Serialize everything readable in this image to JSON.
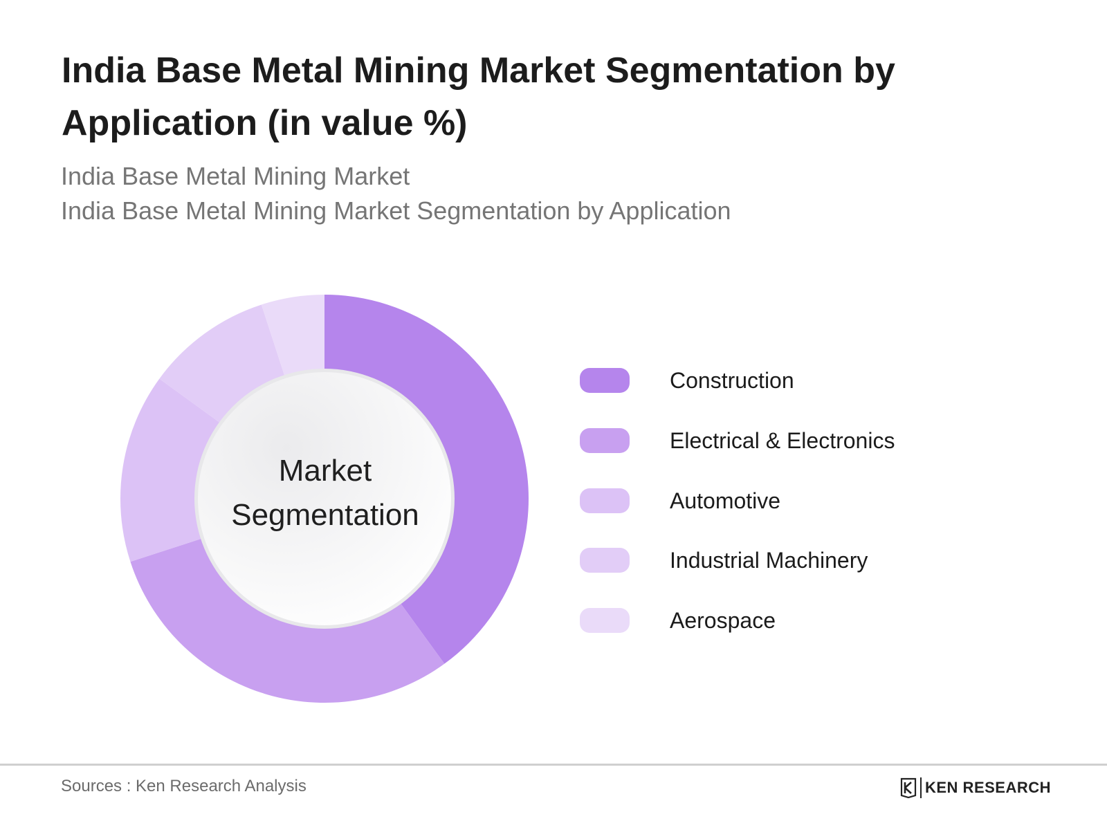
{
  "header": {
    "title": "India Base Metal Mining Market Segmentation by Application (in value %)",
    "subtitle_line1": "India Base Metal Mining Market",
    "subtitle_line2": "India Base Metal Mining Market Segmentation by Application"
  },
  "chart_data": {
    "type": "pie",
    "donut": true,
    "center_label_line1": "Market",
    "center_label_line2": "Segmentation",
    "categories": [
      "Construction",
      "Electrical & Electronics",
      "Automotive",
      "Industrial Machinery",
      "Aerospace"
    ],
    "values": [
      40,
      30,
      15,
      10,
      5
    ],
    "colors": [
      "#b585ec",
      "#c8a0f0",
      "#dcc2f6",
      "#e2cdf7",
      "#eadbf9"
    ],
    "legend_position": "right"
  },
  "footer": {
    "source": "Sources : Ken Research Analysis",
    "brand": "KEN RESEARCH"
  }
}
